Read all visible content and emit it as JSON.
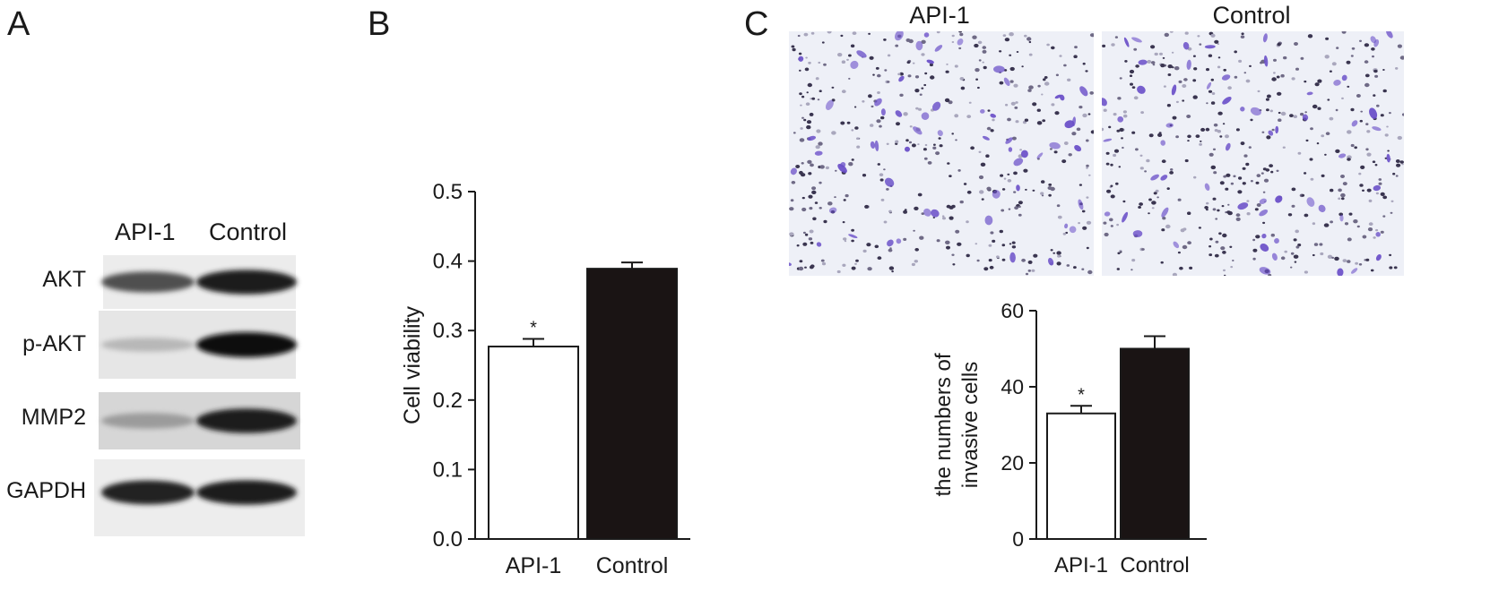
{
  "panels": {
    "a": "A",
    "b": "B",
    "c": "C"
  },
  "blot": {
    "lanes": [
      "API-1",
      "Control"
    ],
    "rows": [
      {
        "name": "AKT",
        "intensity": [
          0.7,
          0.95
        ]
      },
      {
        "name": "p-AKT",
        "intensity": [
          0.22,
          1.0
        ]
      },
      {
        "name": "MMP2",
        "intensity": [
          0.35,
          0.95
        ]
      },
      {
        "name": "GAPDH",
        "intensity": [
          0.92,
          0.95
        ]
      }
    ]
  },
  "micrographs": {
    "labels": [
      "API-1",
      "Control"
    ]
  },
  "colors": {
    "control_bar": "#1a1414",
    "api_bar": "#ffffff",
    "stain": "#6a4fc8",
    "field": "#eef0f7"
  },
  "chart_data": [
    {
      "type": "bar",
      "categories": [
        "API-1",
        "Control"
      ],
      "values": [
        0.277,
        0.389
      ],
      "errors": [
        0.011,
        0.009
      ],
      "significance": [
        "*",
        ""
      ],
      "ylabel": "Cell viability",
      "ylim": [
        0,
        0.5
      ],
      "yticks": [
        "0.0",
        "0.1",
        "0.2",
        "0.3",
        "0.4",
        "0.5"
      ]
    },
    {
      "type": "bar",
      "categories": [
        "API-1",
        "Control"
      ],
      "values": [
        33,
        50
      ],
      "errors": [
        2,
        3.3
      ],
      "significance": [
        "*",
        ""
      ],
      "ylabel": "the numbers of",
      "ylabel2": "invasive cells",
      "ylim": [
        0,
        60
      ],
      "yticks": [
        "0",
        "20",
        "40",
        "60"
      ]
    }
  ]
}
